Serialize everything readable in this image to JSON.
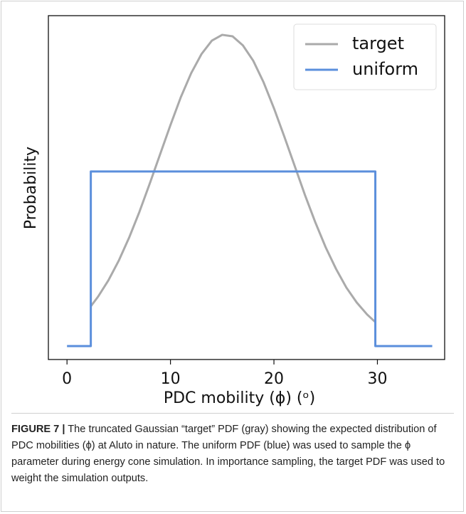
{
  "chart_data": {
    "type": "line",
    "xlabel": "PDC mobility (ϕ) (ᵒ)",
    "ylabel": "Probability",
    "xlim": [
      -1.8,
      36.5
    ],
    "xticks": [
      0,
      10,
      20,
      30
    ],
    "ylim": [
      -0.0028,
      0.0689
    ],
    "yticks": [],
    "legend": "upper right",
    "series": [
      {
        "name": "target",
        "color": "#aaaaaa",
        "x": [
          2.3,
          3,
          4,
          5,
          6,
          7,
          8,
          9,
          10,
          11,
          12,
          13,
          14,
          15,
          16,
          17,
          18,
          19,
          20,
          21,
          22,
          23,
          24,
          25,
          26,
          27,
          28,
          29,
          29.8
        ],
        "values": [
          0.0083,
          0.0103,
          0.0137,
          0.0178,
          0.0226,
          0.028,
          0.0339,
          0.04,
          0.0461,
          0.0519,
          0.0569,
          0.0609,
          0.0637,
          0.0649,
          0.0646,
          0.0627,
          0.0595,
          0.055,
          0.0496,
          0.0437,
          0.0376,
          0.0315,
          0.0258,
          0.0206,
          0.0161,
          0.0122,
          0.0091,
          0.0066,
          0.005
        ]
      },
      {
        "name": "uniform",
        "color": "#5b8fdc",
        "x": [
          0,
          2.3,
          2.3,
          29.8,
          29.8,
          35.3
        ],
        "values": [
          0,
          0,
          0.0364,
          0.0364,
          0,
          0
        ]
      }
    ]
  },
  "caption": {
    "label": "FIGURE 7 |",
    "text": "The truncated Gaussian “target” PDF (gray) showing the expected distribution of PDC mobilities (ϕ) at Aluto in nature. The uniform PDF (blue) was used to sample the ϕ parameter during energy cone simulation. In importance sampling, the target PDF was used to weight the simulation outputs."
  }
}
